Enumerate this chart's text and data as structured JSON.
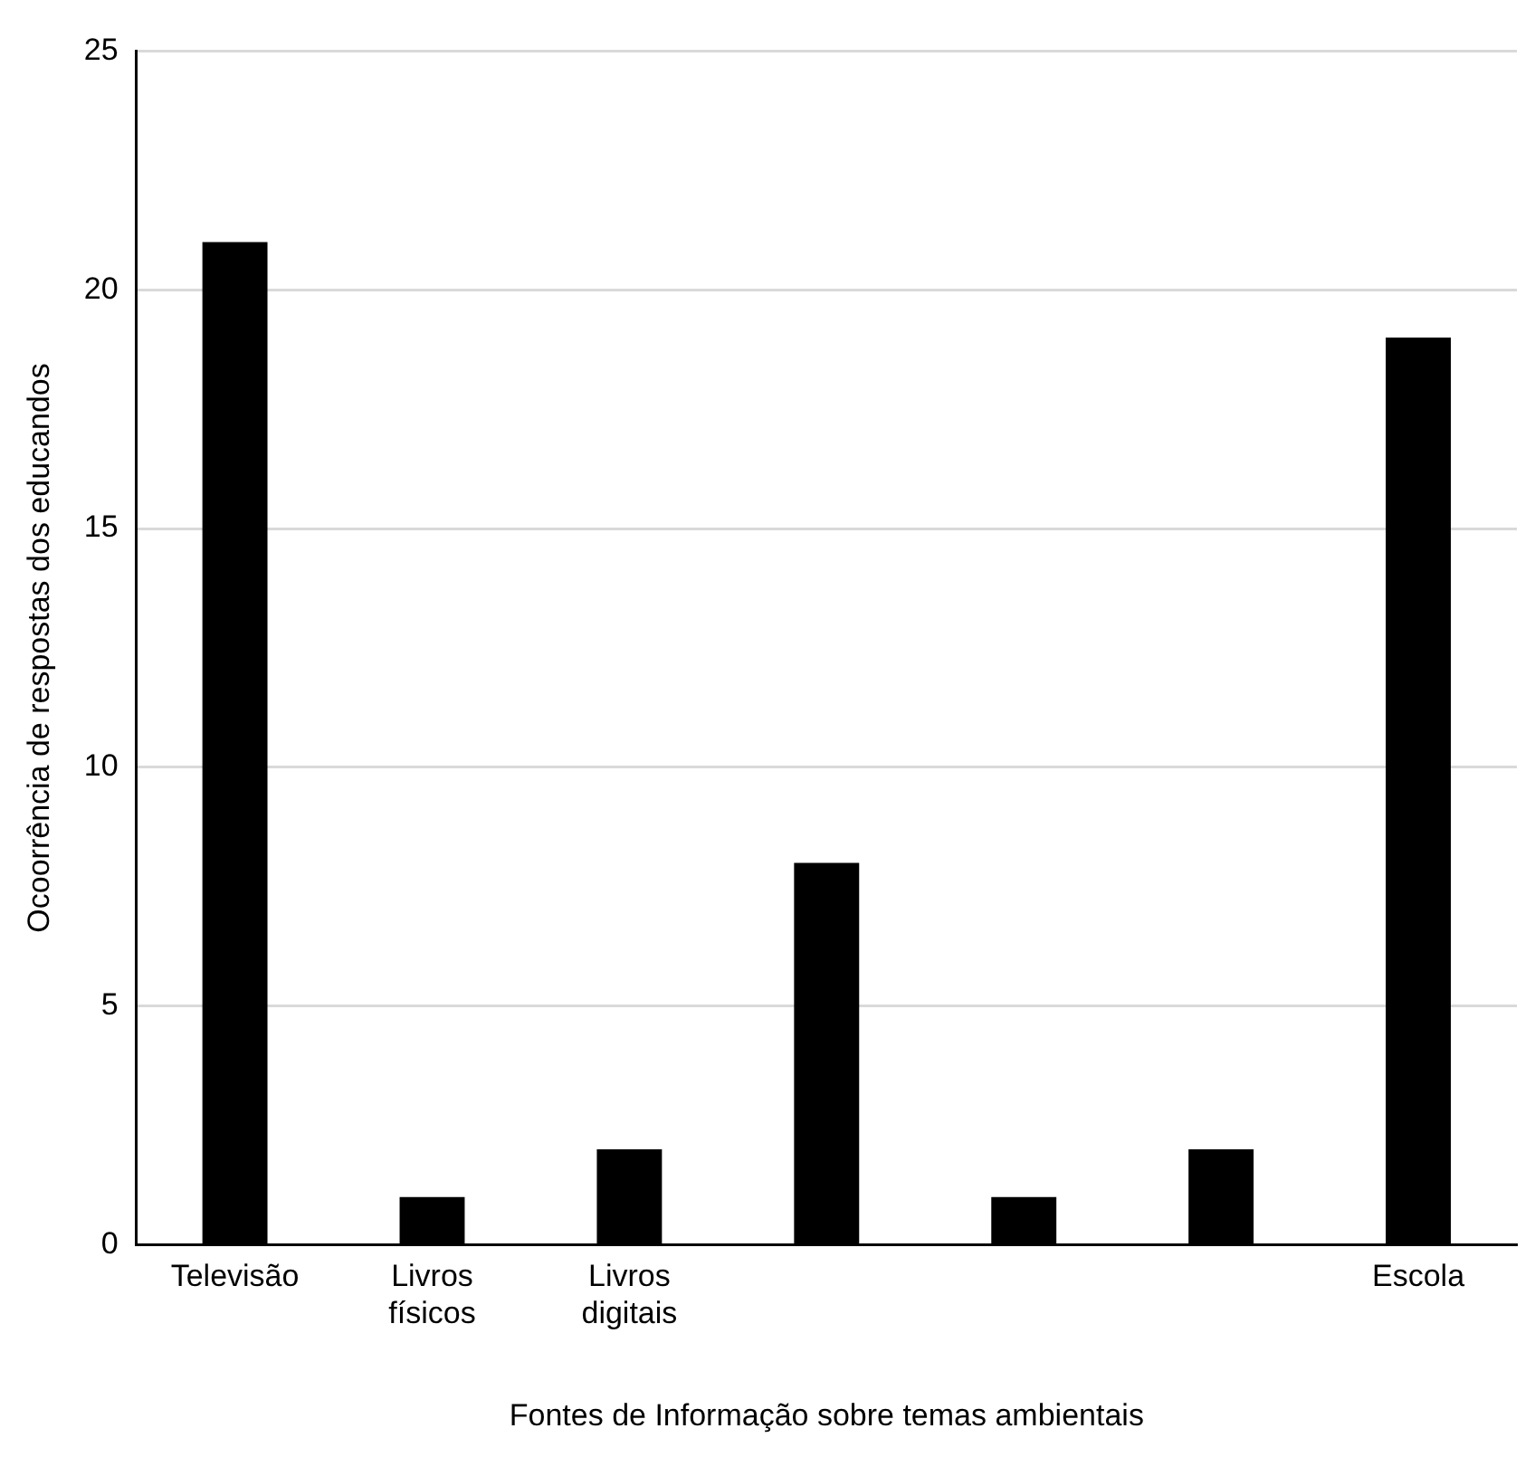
{
  "chart_data": {
    "type": "bar",
    "xlabel": "Fontes de Informação sobre temas ambientais",
    "ylabel": "Ocoorrência de respostas dos educandos",
    "categories": [
      "Televisão",
      "Livros físicos",
      "Livros digitais",
      null,
      null,
      null,
      "Escola"
    ],
    "values": [
      21,
      1,
      2,
      8,
      1,
      2,
      19
    ],
    "color": "#000000",
    "ylim": [
      0,
      25
    ],
    "yticks": [
      0,
      5,
      10,
      15,
      20,
      25
    ],
    "grid": "y",
    "legend": false
  }
}
